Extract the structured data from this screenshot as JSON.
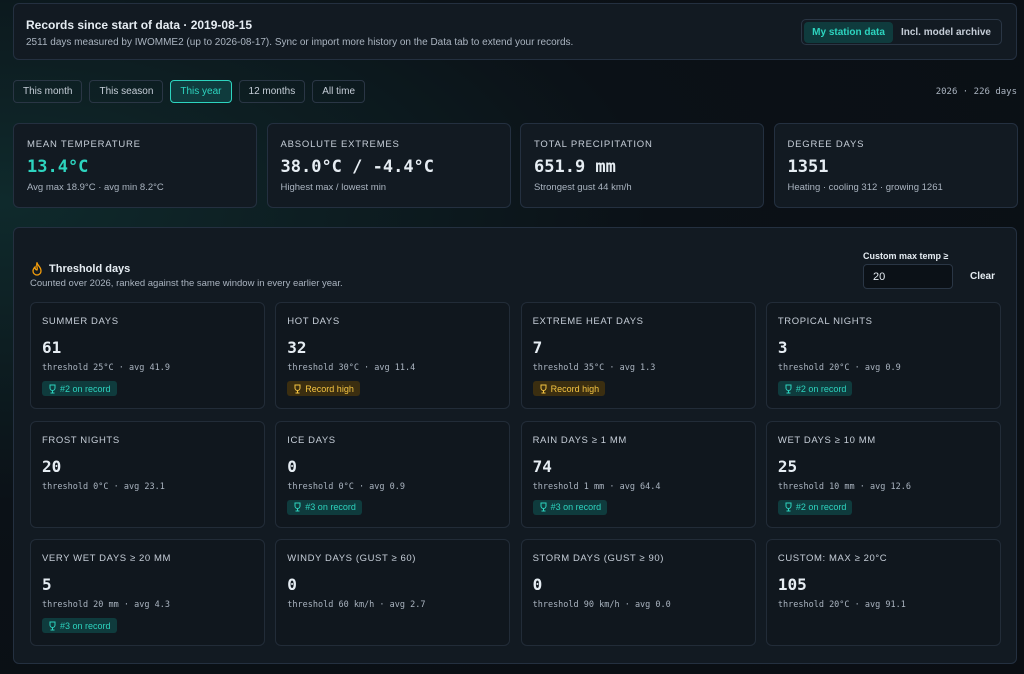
{
  "header": {
    "title": "Records since start of data · 2019-08-15",
    "subtitle": "2511 days measured by IWOMME2 (up to 2026-08-17). Sync or import more history on the Data tab to extend your records.",
    "toggle": [
      "My station data",
      "Incl. model archive"
    ],
    "toggle_active": 0
  },
  "tabs": [
    "This month",
    "This season",
    "This year",
    "12 months",
    "All time"
  ],
  "tab_active": 2,
  "range_label": "2026 · 226 days",
  "summary": [
    {
      "label": "MEAN TEMPERATURE",
      "value": "13.4°C",
      "note": "Avg max 18.9°C · avg min 8.2°C",
      "color": "#2dd4bf"
    },
    {
      "label": "ABSOLUTE EXTREMES",
      "value": "38.0°C / -4.4°C",
      "note": "Highest max / lowest min",
      "color": "#e6edf3"
    },
    {
      "label": "TOTAL PRECIPITATION",
      "value": "651.9 mm",
      "note": "Strongest gust 44 km/h",
      "color": "#e6edf3"
    },
    {
      "label": "DEGREE DAYS",
      "value": "1351",
      "note": "Heating · cooling 312 · growing 1261",
      "color": "#e6edf3"
    }
  ],
  "panel": {
    "title": "Threshold days",
    "subtitle": "Counted over 2026, ranked against the same window in every earlier year.",
    "custom_label": "Custom max temp ≥",
    "custom_value": "20",
    "clear": "Clear",
    "cards": [
      {
        "label": "SUMMER DAYS",
        "value": "61",
        "note": "threshold 25°C · avg 41.9",
        "badge": "#2 on record",
        "badge_color": "teal"
      },
      {
        "label": "HOT DAYS",
        "value": "32",
        "note": "threshold 30°C · avg 11.4",
        "badge": "Record high",
        "badge_color": "gold"
      },
      {
        "label": "EXTREME HEAT DAYS",
        "value": "7",
        "note": "threshold 35°C · avg 1.3",
        "badge": "Record high",
        "badge_color": "gold"
      },
      {
        "label": "TROPICAL NIGHTS",
        "value": "3",
        "note": "threshold 20°C · avg 0.9",
        "badge": "#2 on record",
        "badge_color": "teal"
      },
      {
        "label": "FROST NIGHTS",
        "value": "20",
        "note": "threshold 0°C · avg 23.1"
      },
      {
        "label": "ICE DAYS",
        "value": "0",
        "note": "threshold 0°C · avg 0.9",
        "badge": "#3 on record",
        "badge_color": "teal"
      },
      {
        "label": "RAIN DAYS ≥ 1 MM",
        "value": "74",
        "note": "threshold 1 mm · avg 64.4",
        "badge": "#3 on record",
        "badge_color": "teal"
      },
      {
        "label": "WET DAYS ≥ 10 MM",
        "value": "25",
        "note": "threshold 10 mm · avg 12.6",
        "badge": "#2 on record",
        "badge_color": "teal"
      },
      {
        "label": "VERY WET DAYS ≥ 20 MM",
        "value": "5",
        "note": "threshold 20 mm · avg 4.3",
        "badge": "#3 on record",
        "badge_color": "teal"
      },
      {
        "label": "WINDY DAYS (GUST ≥ 60)",
        "value": "0",
        "note": "threshold 60 km/h · avg 2.7"
      },
      {
        "label": "STORM DAYS (GUST ≥ 90)",
        "value": "0",
        "note": "threshold 90 km/h · avg 0.0"
      },
      {
        "label": "CUSTOM: MAX ≥ 20°C",
        "value": "105",
        "note": "threshold 20°C · avg 91.1"
      }
    ]
  }
}
